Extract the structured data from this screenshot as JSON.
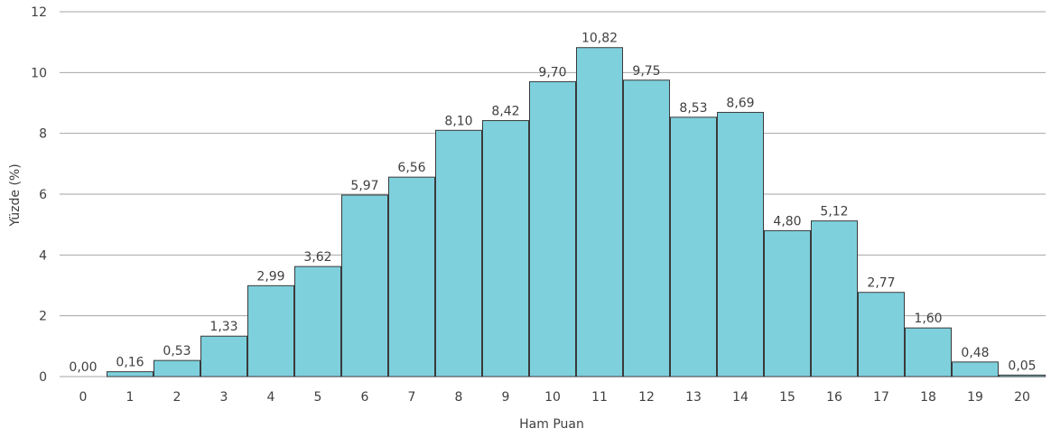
{
  "chart_data": {
    "type": "bar",
    "xlabel": "Ham Puan",
    "ylabel": "Yüzde (%)",
    "ylim": [
      0,
      12
    ],
    "yticks": [
      "0",
      "2",
      "4",
      "6",
      "8",
      "10",
      "12"
    ],
    "grid": true,
    "bar_color": "#7ed0dd",
    "categories": [
      "0",
      "1",
      "2",
      "3",
      "4",
      "5",
      "6",
      "7",
      "8",
      "9",
      "10",
      "11",
      "12",
      "13",
      "14",
      "15",
      "16",
      "17",
      "18",
      "19",
      "20"
    ],
    "values": [
      0.0,
      0.16,
      0.53,
      1.33,
      2.99,
      3.62,
      5.97,
      6.56,
      8.1,
      8.42,
      9.7,
      10.82,
      9.75,
      8.53,
      8.69,
      4.8,
      5.12,
      2.77,
      1.6,
      0.48,
      0.05
    ],
    "data_labels": [
      "0,00",
      "0,16",
      "0,53",
      "1,33",
      "2,99",
      "3,62",
      "5,97",
      "6,56",
      "8,10",
      "8,42",
      "9,70",
      "10,82",
      "9,75",
      "8,53",
      "8,69",
      "4,80",
      "5,12",
      "2,77",
      "1,60",
      "0,48",
      "0,05"
    ]
  }
}
